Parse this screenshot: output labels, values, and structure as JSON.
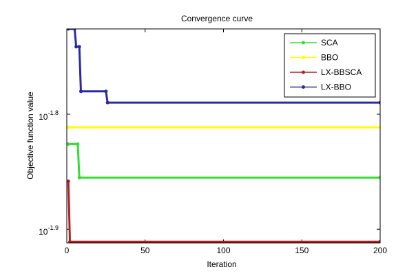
{
  "chart_data": {
    "type": "line",
    "title": "Convergence curve",
    "xlabel": "Iteration",
    "ylabel": "Objective function value",
    "xlim": [
      0,
      200
    ],
    "xticks": [
      0,
      50,
      100,
      150,
      200
    ],
    "ylim": [
      0.01225,
      0.0188
    ],
    "log_y": true,
    "yticks": [
      {
        "value": 0.0125893,
        "label": "10",
        "exponent": "-1.9"
      },
      {
        "value": 0.0158489,
        "label": "10",
        "exponent": "-1.8"
      }
    ],
    "legend": "upper right",
    "series": [
      {
        "name": "SCA",
        "color": "#33dd33",
        "x": [
          1,
          7,
          8,
          200
        ],
        "values": [
          0.01493,
          0.01493,
          0.01396,
          0.01396
        ]
      },
      {
        "name": "BBO",
        "color": "#ffff00",
        "x": [
          1,
          200
        ],
        "values": [
          0.01544,
          0.01544
        ]
      },
      {
        "name": "LX-BBSCA",
        "color": "#b22222",
        "x": [
          1,
          2,
          200
        ],
        "values": [
          0.01386,
          0.01228,
          0.01228
        ]
      },
      {
        "name": "LX-BBO",
        "color": "#2a2aa0",
        "x": [
          1,
          5,
          6,
          8,
          9,
          25,
          26,
          200
        ],
        "values": [
          0.0188,
          0.0188,
          0.01814,
          0.01814,
          0.01659,
          0.01659,
          0.01622,
          0.01622
        ]
      }
    ]
  }
}
